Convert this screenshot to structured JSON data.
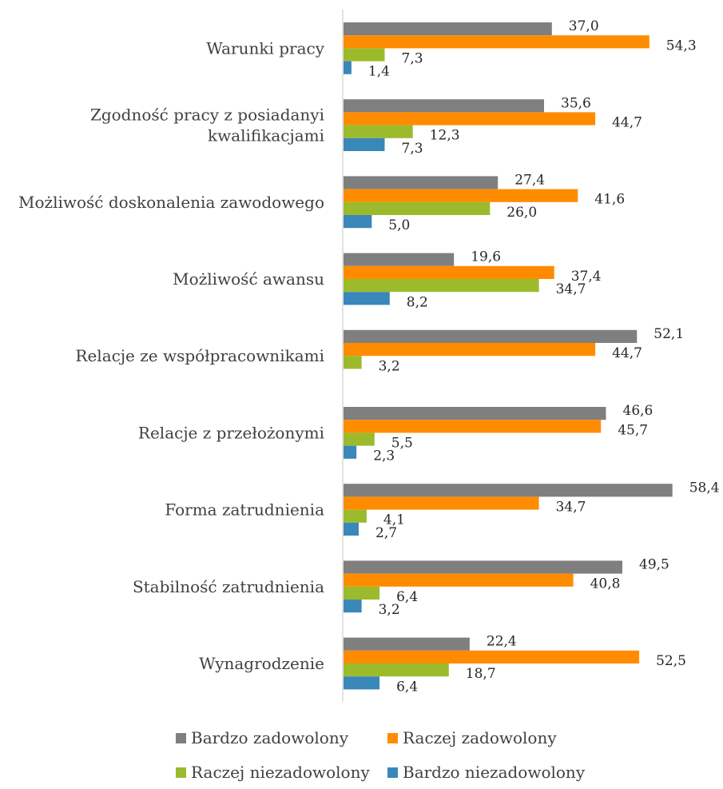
{
  "chart_data": {
    "type": "bar",
    "orientation": "horizontal",
    "categories": [
      "Warunki pracy",
      [
        "Zgodność pracy z posiadanyi",
        "kwalifikacjami"
      ],
      "Możliwość doskonalenia zawodowego",
      "Możliwość awansu",
      "Relacje ze współpracownikami",
      "Relacje z przełożonymi",
      "Forma zatrudnienia",
      "Stabilność zatrudnienia",
      "Wynagrodzenie"
    ],
    "series": [
      {
        "name": "Bardzo zadowolony",
        "color": "#7f7f7f",
        "values": [
          37.0,
          35.6,
          27.4,
          19.6,
          52.1,
          46.6,
          58.4,
          49.5,
          22.4
        ]
      },
      {
        "name": "Raczej zadowolony",
        "color": "#ff8c00",
        "values": [
          54.3,
          44.7,
          41.6,
          37.4,
          44.7,
          45.7,
          34.7,
          40.8,
          52.5
        ]
      },
      {
        "name": "Raczej niezadowolony",
        "color": "#9bbb2c",
        "values": [
          7.3,
          12.3,
          26.0,
          34.7,
          3.2,
          5.5,
          4.1,
          6.4,
          18.7
        ]
      },
      {
        "name": "Bardzo niezadowolony",
        "color": "#3a87b9",
        "values": [
          1.4,
          7.3,
          5.0,
          8.2,
          null,
          2.3,
          2.7,
          3.2,
          6.4
        ]
      }
    ],
    "xlim": [
      0,
      65
    ],
    "value_labels": [
      [
        "37,0",
        "54,3",
        "7,3",
        "1,4"
      ],
      [
        "35,6",
        "44,7",
        "12,3",
        "7,3"
      ],
      [
        "27,4",
        "41,6",
        "26,0",
        "5,0"
      ],
      [
        "19,6",
        "37,4",
        "34,7",
        "8,2"
      ],
      [
        "52,1",
        "44,7",
        "3,2",
        ""
      ],
      [
        "46,6",
        "45,7",
        "5,5",
        "2,3"
      ],
      [
        "58,4",
        "34,7",
        "4,1",
        "2,7"
      ],
      [
        "49,5",
        "40,8",
        "6,4",
        "3,2"
      ],
      [
        "22,4",
        "52,5",
        "18,7",
        "6,4"
      ]
    ],
    "grid": false,
    "legend_position": "bottom"
  }
}
